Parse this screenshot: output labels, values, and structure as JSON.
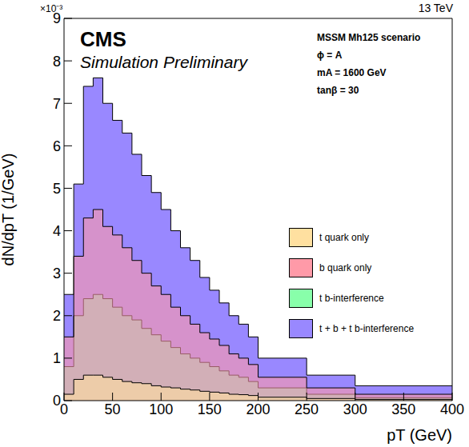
{
  "chart_data": {
    "type": "histogram",
    "x_label": "pT (GeV)",
    "y_label": "dN/dpT (1/GeV)",
    "annotations": [
      "×10⁻³",
      "13 TeV",
      "CMS",
      "Simulation Preliminary",
      "MSSM Mh125 scenario",
      "ϕ = A",
      "mA = 1600 GeV",
      "tanβ = 30"
    ],
    "bins": [
      0,
      10,
      20,
      30,
      40,
      50,
      60,
      70,
      80,
      90,
      100,
      110,
      120,
      130,
      140,
      150,
      160,
      170,
      180,
      190,
      200,
      250,
      300,
      400
    ],
    "series": [
      {
        "name": "t quark only",
        "color": "#ffe0a0",
        "values": [
          0.15,
          0.5,
          0.6,
          0.6,
          0.55,
          0.5,
          0.45,
          0.42,
          0.4,
          0.35,
          0.32,
          0.3,
          0.27,
          0.25,
          0.22,
          0.2,
          0.18,
          0.15,
          0.14,
          0.12,
          0.08,
          0.05,
          0.03
        ]
      },
      {
        "name": "b quark only",
        "color": "#ff9aa8",
        "values": [
          1.5,
          3.4,
          4.3,
          4.5,
          4.1,
          3.9,
          3.6,
          3.3,
          3.0,
          2.7,
          2.5,
          2.2,
          2.0,
          1.8,
          1.6,
          1.45,
          1.3,
          1.1,
          1.0,
          0.85,
          0.55,
          0.3,
          0.15
        ]
      },
      {
        "name": "t b-interference",
        "color": "#88ffaa",
        "values": [
          0.8,
          2.0,
          2.4,
          2.5,
          2.4,
          2.2,
          2.0,
          1.9,
          1.7,
          1.55,
          1.4,
          1.25,
          1.1,
          1.0,
          0.9,
          0.8,
          0.7,
          0.6,
          0.55,
          0.45,
          0.3,
          0.15,
          0.07
        ]
      },
      {
        "name": "t + b + t b-interference",
        "color": "#9988ff",
        "values": [
          2.5,
          5.1,
          7.4,
          7.6,
          7.0,
          6.6,
          6.3,
          5.8,
          5.3,
          4.9,
          4.5,
          4.0,
          3.6,
          3.3,
          2.9,
          2.6,
          2.3,
          2.0,
          1.8,
          1.5,
          1.0,
          0.6,
          0.35
        ]
      }
    ],
    "xlim": [
      0,
      400
    ],
    "xticks": [
      0,
      50,
      100,
      150,
      200,
      250,
      300,
      350,
      400
    ],
    "ylim": [
      0,
      9
    ],
    "yticks": [
      0,
      1,
      2,
      3,
      4,
      5,
      6,
      7,
      8,
      9
    ],
    "legend": "right"
  }
}
